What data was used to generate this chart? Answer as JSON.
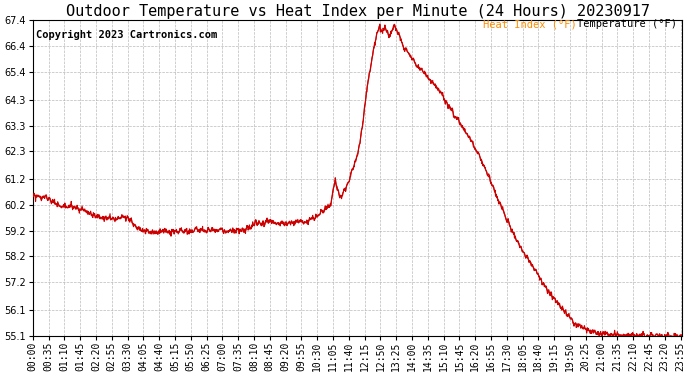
{
  "title": "Outdoor Temperature vs Heat Index per Minute (24 Hours) 20230917",
  "copyright": "Copyright 2023 Cartronics.com",
  "ylim": [
    55.1,
    67.4
  ],
  "yticks": [
    55.1,
    56.1,
    57.2,
    58.2,
    59.2,
    60.2,
    61.2,
    62.3,
    63.3,
    64.3,
    65.4,
    66.4,
    67.4
  ],
  "legend_heat_index": "Heat Index (°F)",
  "legend_temp": "Temperature (°F)",
  "legend_heat_index_color": "#ff8c00",
  "legend_temp_color": "#000000",
  "line_color": "#cc0000",
  "background_color": "#ffffff",
  "grid_color": "#aaaaaa",
  "title_fontsize": 11,
  "copyright_fontsize": 7.5,
  "tick_fontsize": 7,
  "figwidth": 6.9,
  "figheight": 3.75,
  "dpi": 100
}
